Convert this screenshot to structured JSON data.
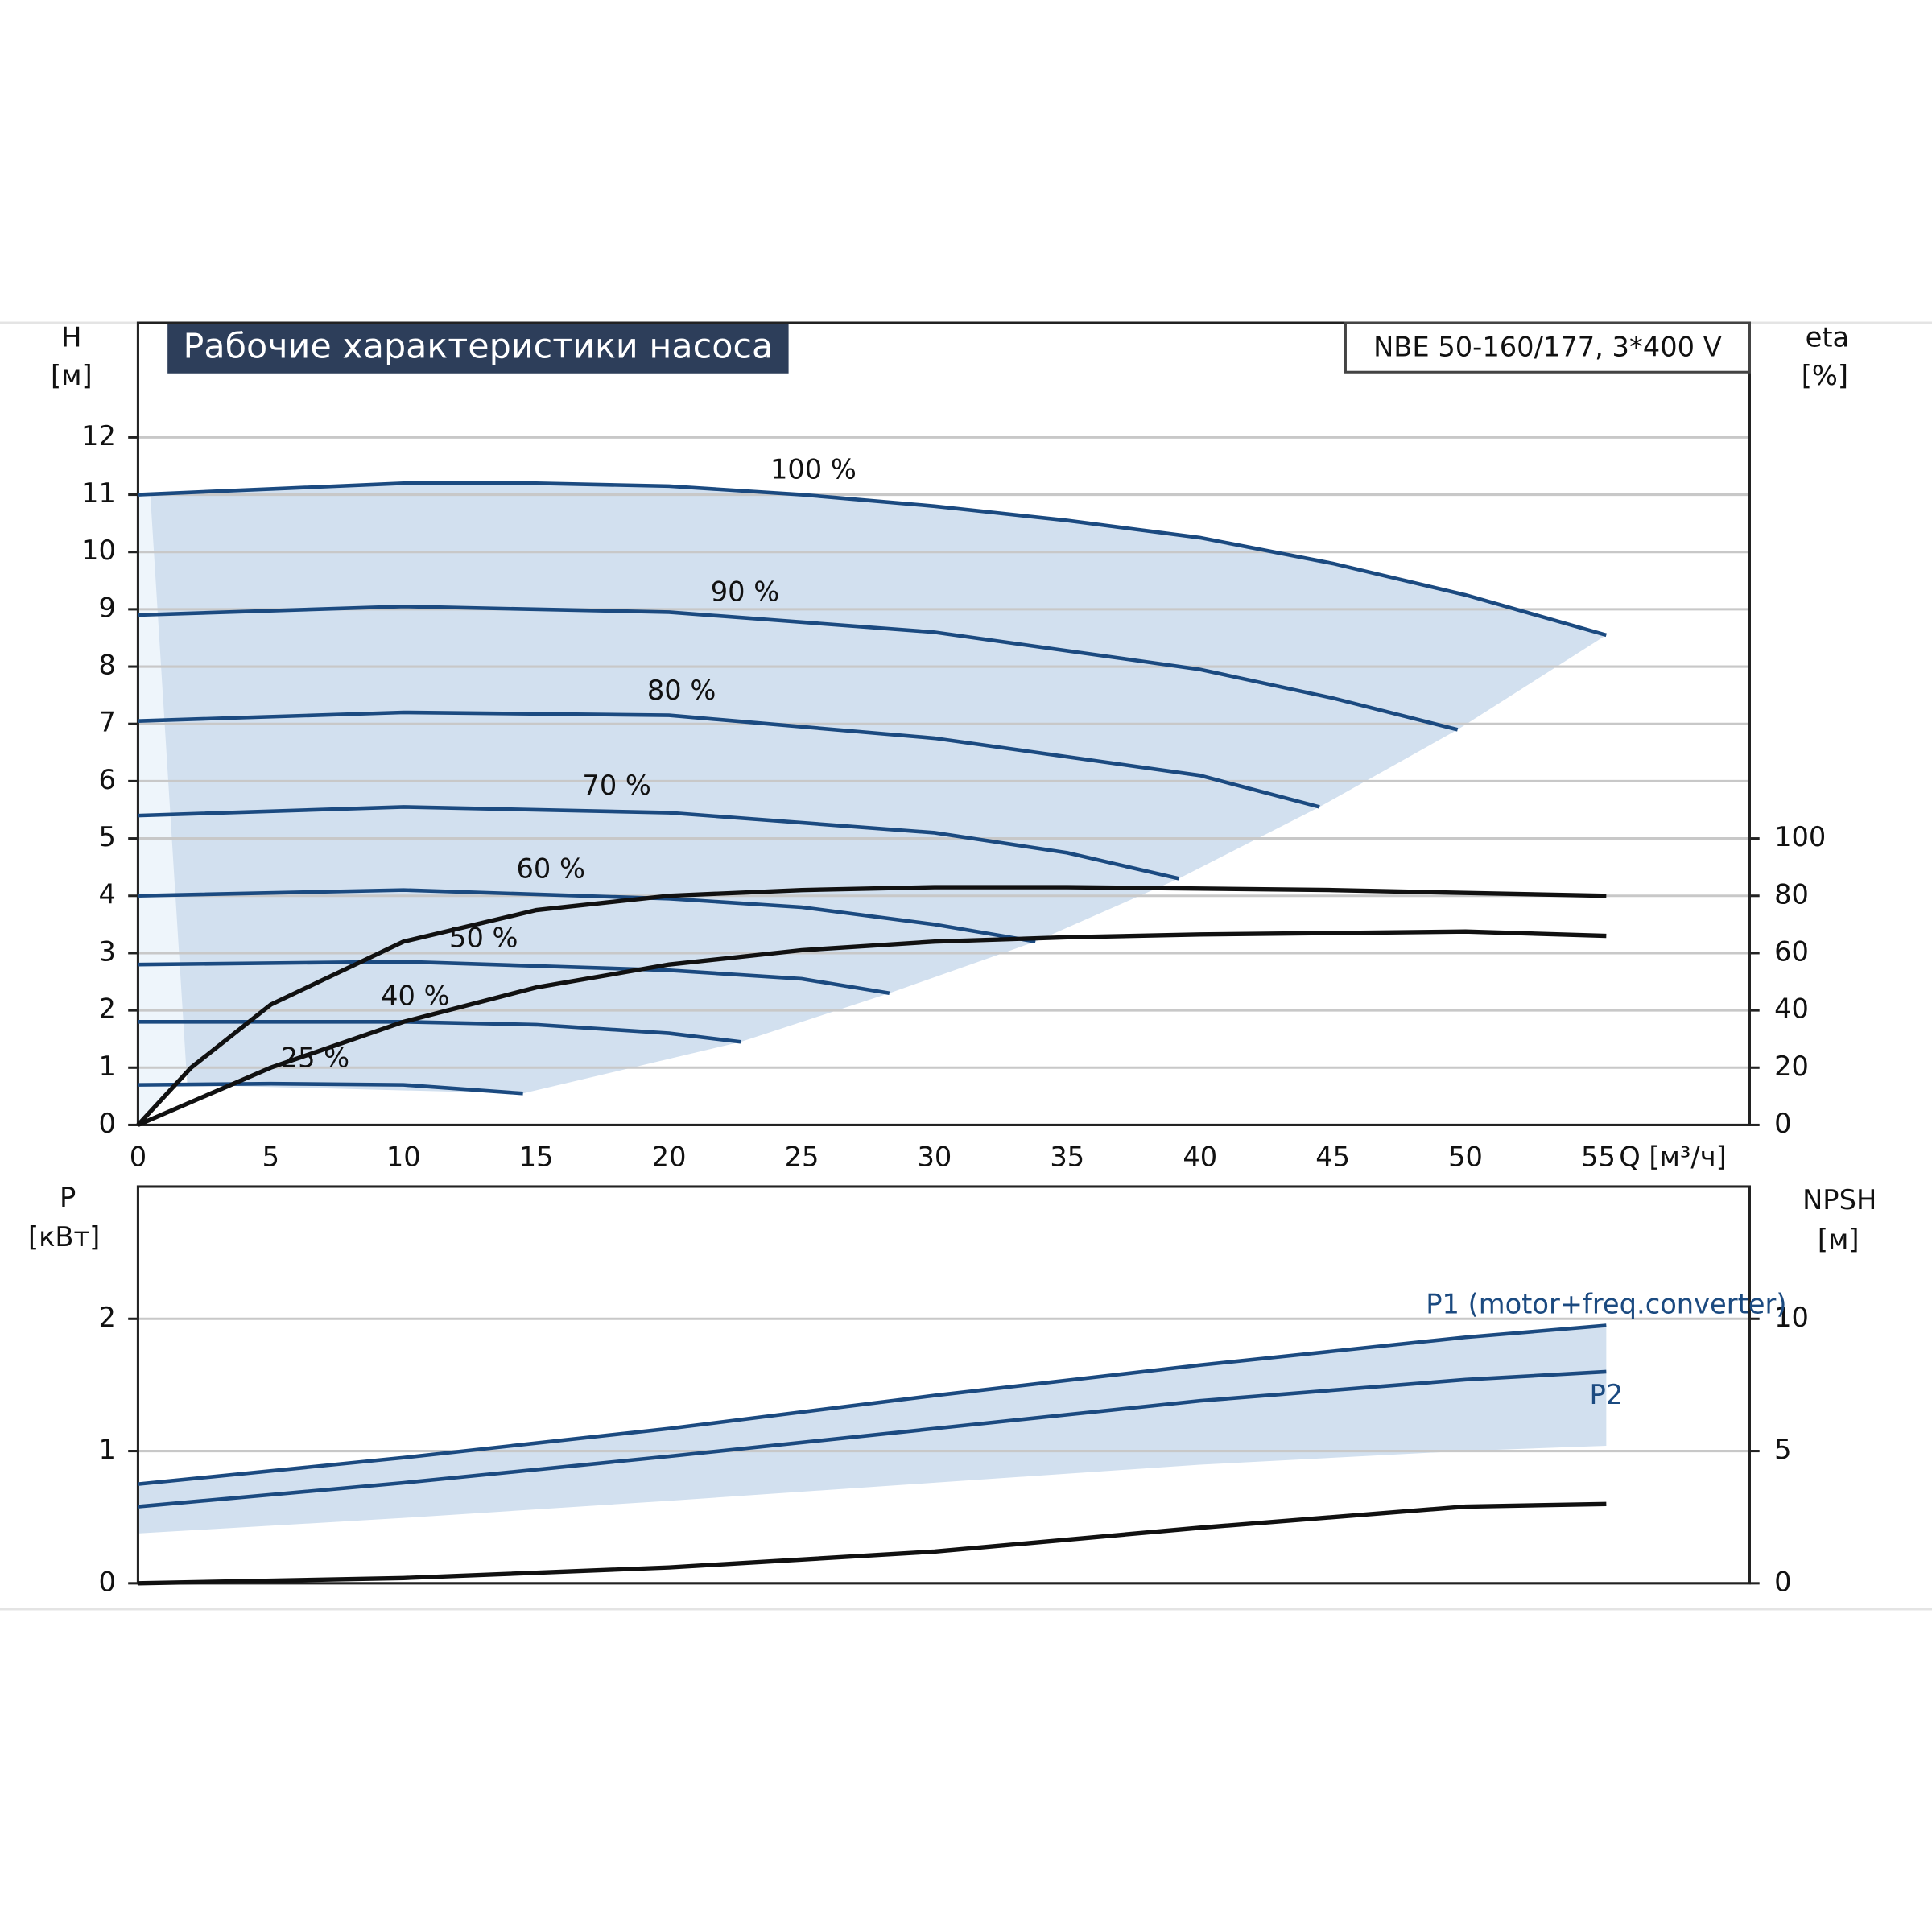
{
  "chart_data": [
    {
      "type": "line",
      "title": "Рабочие характеристики насоса",
      "subtitle": "NBE 50-160/177, 3*400 V",
      "y_label": "H",
      "y_unit": "[м]",
      "y2_label": "eta",
      "y2_unit": "[%]",
      "x_label": "Q [м³/ч]",
      "xlim": [
        0,
        60.7
      ],
      "xticks": [
        0,
        5,
        10,
        15,
        20,
        25,
        30,
        35,
        40,
        45,
        50,
        55
      ],
      "ylim": [
        0,
        14
      ],
      "yticks": [
        0,
        1,
        2,
        3,
        4,
        5,
        6,
        7,
        8,
        9,
        10,
        11,
        12
      ],
      "y2lim": [
        0,
        280
      ],
      "y2ticks": [
        0,
        20,
        40,
        60,
        80,
        100
      ],
      "grid": true,
      "series": [
        {
          "name": "100 %",
          "color": "#1b4a80",
          "x": [
            0,
            5,
            10,
            15,
            20,
            25,
            30,
            35,
            40,
            45,
            50,
            55.3
          ],
          "values": [
            11.0,
            11.1,
            11.2,
            11.2,
            11.15,
            11.0,
            10.8,
            10.55,
            10.25,
            9.8,
            9.25,
            8.55
          ]
        },
        {
          "name": "90 %",
          "color": "#1b4a80",
          "x": [
            0,
            10,
            20,
            30,
            40,
            45,
            49.7
          ],
          "values": [
            8.9,
            9.05,
            8.95,
            8.6,
            7.95,
            7.45,
            6.9
          ]
        },
        {
          "name": "80 %",
          "color": "#1b4a80",
          "x": [
            0,
            10,
            20,
            30,
            40,
            44.5
          ],
          "values": [
            7.05,
            7.2,
            7.15,
            6.75,
            6.1,
            5.55
          ]
        },
        {
          "name": "70 %",
          "color": "#1b4a80",
          "x": [
            0,
            10,
            20,
            30,
            35,
            39.2
          ],
          "values": [
            5.4,
            5.55,
            5.45,
            5.1,
            4.75,
            4.3
          ]
        },
        {
          "name": "60 %",
          "color": "#1b4a80",
          "x": [
            0,
            10,
            20,
            25,
            30,
            33.8
          ],
          "values": [
            4.0,
            4.1,
            3.95,
            3.8,
            3.5,
            3.2
          ]
        },
        {
          "name": "50 %",
          "color": "#1b4a80",
          "x": [
            0,
            10,
            20,
            25,
            28.3
          ],
          "values": [
            2.8,
            2.85,
            2.7,
            2.55,
            2.3
          ]
        },
        {
          "name": "40 %",
          "color": "#1b4a80",
          "x": [
            0,
            10,
            15,
            20,
            22.7
          ],
          "values": [
            1.8,
            1.8,
            1.75,
            1.6,
            1.45
          ]
        },
        {
          "name": "25 %",
          "color": "#1b4a80",
          "x": [
            0,
            5,
            10,
            14.5
          ],
          "values": [
            0.7,
            0.72,
            0.7,
            0.55
          ]
        },
        {
          "color": "#111111",
          "axis": "y2",
          "x": [
            0,
            2,
            5,
            10,
            15,
            20,
            25,
            30,
            35,
            40,
            45,
            50,
            55.3
          ],
          "values": [
            0,
            20,
            42,
            64,
            75,
            80,
            82,
            83,
            83,
            82.5,
            82,
            81,
            80
          ]
        },
        {
          "color": "#111111",
          "axis": "y2",
          "x": [
            0,
            5,
            10,
            15,
            20,
            25,
            30,
            35,
            40,
            45,
            50,
            55.3
          ],
          "values": [
            0,
            20,
            36,
            48,
            56,
            61,
            64,
            65.5,
            66.5,
            67,
            67.5,
            66
          ]
        }
      ]
    },
    {
      "type": "line",
      "y_label": "P",
      "y_unit": "[кВт]",
      "y2_label": "NPSH",
      "y2_unit": "[м]",
      "xlim": [
        0,
        60.7
      ],
      "ylim": [
        0,
        3
      ],
      "yticks": [
        0,
        1,
        2
      ],
      "y2lim": [
        0,
        15
      ],
      "y2ticks": [
        0,
        5,
        10
      ],
      "grid": true,
      "series": [
        {
          "name": "P1 (motor+freq.converter)",
          "color": "#1b4a80",
          "x": [
            0,
            10,
            20,
            30,
            40,
            50,
            55.3
          ],
          "values": [
            0.75,
            0.95,
            1.17,
            1.42,
            1.65,
            1.86,
            1.95
          ]
        },
        {
          "name": "P2",
          "color": "#1b4a80",
          "x": [
            0,
            10,
            20,
            30,
            40,
            50,
            55.3
          ],
          "values": [
            0.58,
            0.76,
            0.96,
            1.17,
            1.38,
            1.54,
            1.6
          ]
        },
        {
          "color": "#111111",
          "axis": "y2",
          "x": [
            0,
            10,
            20,
            30,
            40,
            50,
            55.3
          ],
          "values": [
            0,
            0.2,
            0.6,
            1.2,
            2.1,
            2.9,
            3.0
          ]
        }
      ]
    }
  ]
}
